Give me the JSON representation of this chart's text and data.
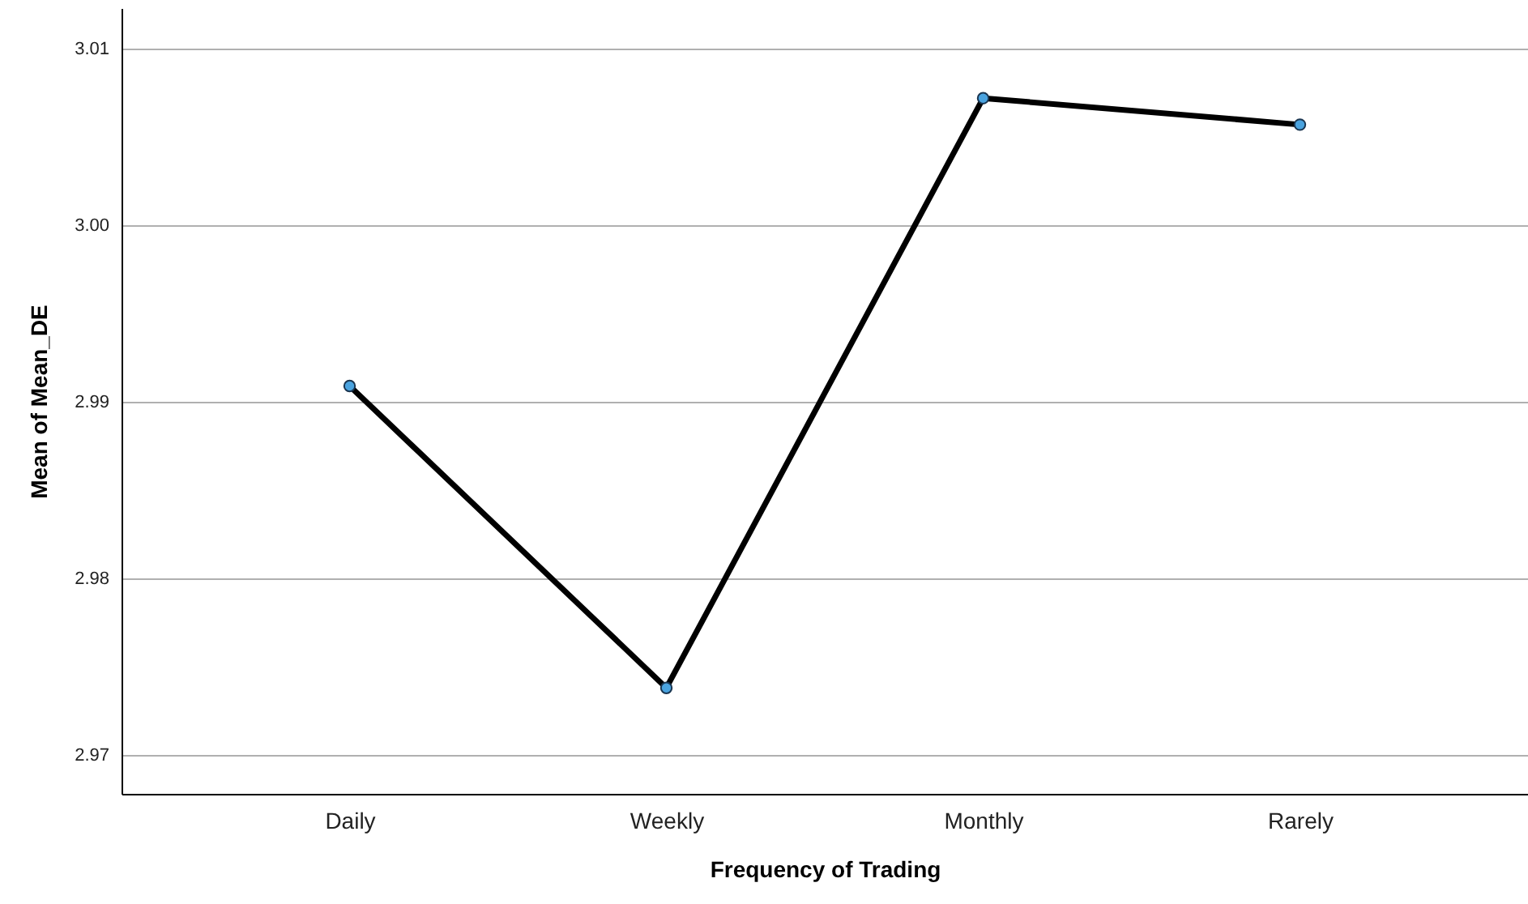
{
  "chart_data": {
    "type": "line",
    "xlabel": "Frequency of Trading",
    "ylabel": "Mean of Mean_DE",
    "categories": [
      "Daily",
      "Weekly",
      "Monthly",
      "Rarely"
    ],
    "series": [
      {
        "color": "#000000",
        "values": [
          2.9909,
          2.9738,
          3.0072,
          3.0057
        ]
      }
    ],
    "ylim": [
      2.9678,
      3.0123
    ],
    "yticks": [
      2.97,
      2.98,
      2.99,
      {
        "value": 3,
        "label": "3.00"
      },
      3.01
    ],
    "grid": "y",
    "marker": "circle",
    "line_style": "solid"
  }
}
